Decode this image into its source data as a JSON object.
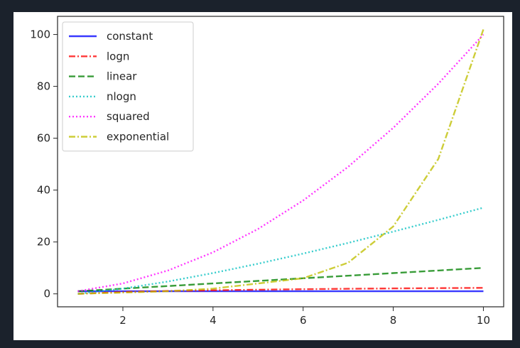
{
  "chart_data": {
    "type": "line",
    "title": "",
    "xlabel": "",
    "ylabel": "",
    "xlim": [
      0.55,
      10.45
    ],
    "ylim": [
      -5,
      107
    ],
    "xticks": [
      2,
      4,
      6,
      8,
      10
    ],
    "yticks": [
      0,
      20,
      40,
      60,
      80,
      100
    ],
    "grid": false,
    "legend_position": "upper left",
    "x": [
      1,
      2,
      3,
      4,
      5,
      6,
      7,
      8,
      9,
      10
    ],
    "series": [
      {
        "name": "constant",
        "color": "#0000ff",
        "linestyle": "solid",
        "values": [
          1,
          1,
          1,
          1,
          1,
          1,
          1,
          1,
          1,
          1
        ]
      },
      {
        "name": "logn",
        "color": "#ff0000",
        "linestyle": "dashdot",
        "values": [
          0,
          0.69,
          1.1,
          1.39,
          1.61,
          1.79,
          1.95,
          2.08,
          2.2,
          2.3
        ]
      },
      {
        "name": "linear",
        "color": "#008000",
        "linestyle": "dashed",
        "values": [
          1,
          2,
          3,
          4,
          5,
          6,
          7,
          8,
          9,
          10
        ]
      },
      {
        "name": "nlogn",
        "color": "#00bfbf",
        "linestyle": "dotted",
        "values": [
          0,
          2,
          4.75,
          8,
          11.61,
          15.51,
          19.65,
          24,
          28.53,
          33.22
        ]
      },
      {
        "name": "squared",
        "color": "#ff00ff",
        "linestyle": "dotted",
        "values": [
          1,
          4,
          9,
          16,
          25,
          36,
          49,
          64,
          81,
          100
        ]
      },
      {
        "name": "exponential",
        "color": "#bfbf00",
        "linestyle": "dashdot",
        "values": [
          0,
          0.5,
          1,
          2,
          4,
          6,
          12,
          26,
          52,
          102
        ]
      }
    ]
  }
}
